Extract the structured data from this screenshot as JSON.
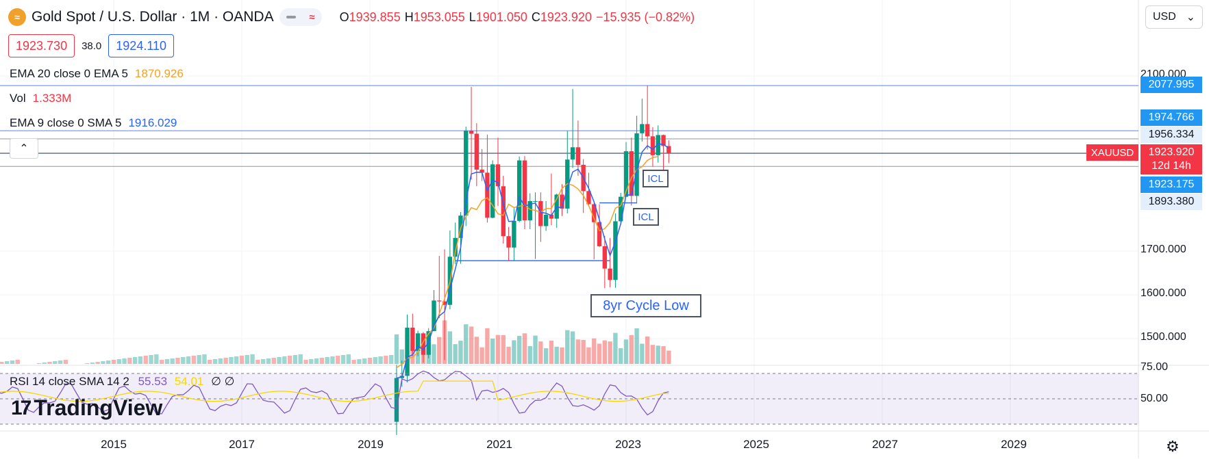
{
  "header": {
    "logo_glyph": "≈",
    "symbol": "Gold Spot / U.S. Dollar · 1M · OANDA",
    "ohlc": [
      {
        "k": "O",
        "v": "1939.855"
      },
      {
        "k": "H",
        "v": "1953.055"
      },
      {
        "k": "L",
        "v": "1901.050"
      },
      {
        "k": "C",
        "v": "1923.920"
      }
    ],
    "change": "−15.935 (−0.82%)",
    "pill_glyph": "≈"
  },
  "trade": {
    "sell": "1923.730",
    "spread": "38.0",
    "buy": "1924.110"
  },
  "indicators": [
    {
      "label": "EMA 20 close 0 EMA 5",
      "value": "1870.926",
      "color": "#f7a021"
    },
    {
      "label": "Vol",
      "value": "1.333M",
      "color": "#f23645"
    },
    {
      "label": "EMA 9 close 0 SMA 5",
      "value": "1916.029",
      "color": "#2962ff"
    }
  ],
  "rsi_legend": {
    "label": "RSI 14 close SMA 14 2",
    "v1": "55.53",
    "v2": "54.01",
    "v3": "∅ ∅"
  },
  "currency": {
    "label": "USD",
    "chevron": "⌄"
  },
  "collapse_glyph": "⌃",
  "y_axis": [
    "2100.000",
    "1700.000",
    "1600.000",
    "1500.000"
  ],
  "rsi_axis": [
    "75.00",
    "50.00"
  ],
  "x_axis": [
    "2015",
    "2017",
    "2019",
    "2021",
    "2023",
    "2025",
    "2027",
    "2029"
  ],
  "price_tags": [
    {
      "v": "2077.995",
      "style": "blue"
    },
    {
      "v": "1974.766",
      "style": "blue"
    },
    {
      "v": "1956.334",
      "style": "light"
    },
    {
      "v": "1923.175",
      "style": "blue"
    },
    {
      "v": "1893.380",
      "style": "light"
    }
  ],
  "current": {
    "symbol": "XAUUSD",
    "price": "1923.920",
    "countdown": "12d 14h"
  },
  "annotations": [
    {
      "text": "ICL"
    },
    {
      "text": "ICL"
    },
    {
      "text": "8yr Cycle Low"
    }
  ],
  "brand": {
    "mark": "17",
    "name": "TradingView"
  },
  "gear_glyph": "⚙",
  "chart_data": {
    "type": "candlestick",
    "interval": "1M",
    "x_range": [
      "2013-03",
      "2030-03"
    ],
    "y_range": [
      1440,
      2150
    ],
    "candles": [
      {
        "t": "2019-06",
        "o": 1310,
        "h": 1440,
        "l": 1280,
        "c": 1410
      },
      {
        "t": "2019-07",
        "o": 1410,
        "h": 1450,
        "l": 1390,
        "c": 1415
      },
      {
        "t": "2019-08",
        "o": 1415,
        "h": 1555,
        "l": 1400,
        "c": 1525
      },
      {
        "t": "2019-09",
        "o": 1525,
        "h": 1557,
        "l": 1460,
        "c": 1472
      },
      {
        "t": "2019-10",
        "o": 1472,
        "h": 1518,
        "l": 1460,
        "c": 1512
      },
      {
        "t": "2019-11",
        "o": 1512,
        "h": 1515,
        "l": 1445,
        "c": 1463
      },
      {
        "t": "2019-12",
        "o": 1463,
        "h": 1524,
        "l": 1455,
        "c": 1517
      },
      {
        "t": "2020-01",
        "o": 1517,
        "h": 1611,
        "l": 1517,
        "c": 1587
      },
      {
        "t": "2020-02",
        "o": 1587,
        "h": 1689,
        "l": 1547,
        "c": 1585
      },
      {
        "t": "2020-03",
        "o": 1585,
        "h": 1704,
        "l": 1451,
        "c": 1577
      },
      {
        "t": "2020-04",
        "o": 1577,
        "h": 1747,
        "l": 1567,
        "c": 1687
      },
      {
        "t": "2020-05",
        "o": 1687,
        "h": 1765,
        "l": 1670,
        "c": 1730
      },
      {
        "t": "2020-06",
        "o": 1730,
        "h": 1789,
        "l": 1671,
        "c": 1781
      },
      {
        "t": "2020-07",
        "o": 1781,
        "h": 1984,
        "l": 1757,
        "c": 1975
      },
      {
        "t": "2020-08",
        "o": 1975,
        "h": 2075,
        "l": 1863,
        "c": 1968
      },
      {
        "t": "2020-09",
        "o": 1968,
        "h": 1992,
        "l": 1848,
        "c": 1886
      },
      {
        "t": "2020-10",
        "o": 1886,
        "h": 1933,
        "l": 1860,
        "c": 1879
      },
      {
        "t": "2020-11",
        "o": 1879,
        "h": 1966,
        "l": 1765,
        "c": 1776
      },
      {
        "t": "2020-12",
        "o": 1776,
        "h": 1907,
        "l": 1775,
        "c": 1898
      },
      {
        "t": "2021-01",
        "o": 1898,
        "h": 1959,
        "l": 1803,
        "c": 1848
      },
      {
        "t": "2021-02",
        "o": 1848,
        "h": 1872,
        "l": 1717,
        "c": 1734
      },
      {
        "t": "2021-03",
        "o": 1734,
        "h": 1755,
        "l": 1677,
        "c": 1708
      },
      {
        "t": "2021-04",
        "o": 1708,
        "h": 1798,
        "l": 1677,
        "c": 1769
      },
      {
        "t": "2021-05",
        "o": 1769,
        "h": 1916,
        "l": 1766,
        "c": 1907
      },
      {
        "t": "2021-06",
        "o": 1907,
        "h": 1917,
        "l": 1750,
        "c": 1770
      },
      {
        "t": "2021-07",
        "o": 1770,
        "h": 1832,
        "l": 1750,
        "c": 1814
      },
      {
        "t": "2021-08",
        "o": 1814,
        "h": 1834,
        "l": 1682,
        "c": 1814
      },
      {
        "t": "2021-09",
        "o": 1814,
        "h": 1834,
        "l": 1721,
        "c": 1757
      },
      {
        "t": "2021-10",
        "o": 1757,
        "h": 1814,
        "l": 1746,
        "c": 1783
      },
      {
        "t": "2021-11",
        "o": 1783,
        "h": 1877,
        "l": 1759,
        "c": 1774
      },
      {
        "t": "2021-12",
        "o": 1774,
        "h": 1831,
        "l": 1753,
        "c": 1829
      },
      {
        "t": "2022-01",
        "o": 1829,
        "h": 1853,
        "l": 1780,
        "c": 1797
      },
      {
        "t": "2022-02",
        "o": 1797,
        "h": 1974,
        "l": 1786,
        "c": 1909
      },
      {
        "t": "2022-03",
        "o": 1909,
        "h": 2070,
        "l": 1890,
        "c": 1937
      },
      {
        "t": "2022-04",
        "o": 1937,
        "h": 1998,
        "l": 1872,
        "c": 1897
      },
      {
        "t": "2022-05",
        "o": 1897,
        "h": 1910,
        "l": 1787,
        "c": 1837
      },
      {
        "t": "2022-06",
        "o": 1837,
        "h": 1879,
        "l": 1805,
        "c": 1807
      },
      {
        "t": "2022-07",
        "o": 1807,
        "h": 1814,
        "l": 1681,
        "c": 1766
      },
      {
        "t": "2022-08",
        "o": 1766,
        "h": 1807,
        "l": 1709,
        "c": 1711
      },
      {
        "t": "2022-09",
        "o": 1711,
        "h": 1735,
        "l": 1615,
        "c": 1660
      },
      {
        "t": "2022-10",
        "o": 1660,
        "h": 1730,
        "l": 1617,
        "c": 1634
      },
      {
        "t": "2022-11",
        "o": 1634,
        "h": 1786,
        "l": 1616,
        "c": 1768
      },
      {
        "t": "2022-12",
        "o": 1768,
        "h": 1833,
        "l": 1765,
        "c": 1824
      },
      {
        "t": "2023-01",
        "o": 1824,
        "h": 1949,
        "l": 1823,
        "c": 1928
      },
      {
        "t": "2023-02",
        "o": 1928,
        "h": 1959,
        "l": 1804,
        "c": 1826
      },
      {
        "t": "2023-03",
        "o": 1826,
        "h": 2009,
        "l": 1809,
        "c": 1969
      },
      {
        "t": "2023-04",
        "o": 1969,
        "h": 2048,
        "l": 1950,
        "c": 1990
      },
      {
        "t": "2023-05",
        "o": 1990,
        "h": 2078,
        "l": 1932,
        "c": 1962
      },
      {
        "t": "2023-06",
        "o": 1962,
        "h": 1983,
        "l": 1893,
        "c": 1919
      },
      {
        "t": "2023-07",
        "o": 1919,
        "h": 1987,
        "l": 1902,
        "c": 1965
      },
      {
        "t": "2023-08",
        "o": 1965,
        "h": 1966,
        "l": 1884,
        "c": 1940
      },
      {
        "t": "2023-09",
        "o": 1939.855,
        "h": 1953.055,
        "l": 1901.05,
        "c": 1923.92
      }
    ],
    "levels": [
      2077.995,
      1974.766,
      1956.334,
      1923.175,
      1893.38
    ],
    "support_lines": [
      {
        "from": "2020-05",
        "to": "2022-10",
        "value": 1678
      },
      {
        "from": "2022-08",
        "to": "2023-03",
        "value": 1810
      }
    ],
    "rsi": {
      "value": 55.53,
      "sma": 54.01,
      "band": [
        30,
        70
      ],
      "mid": 50
    }
  }
}
